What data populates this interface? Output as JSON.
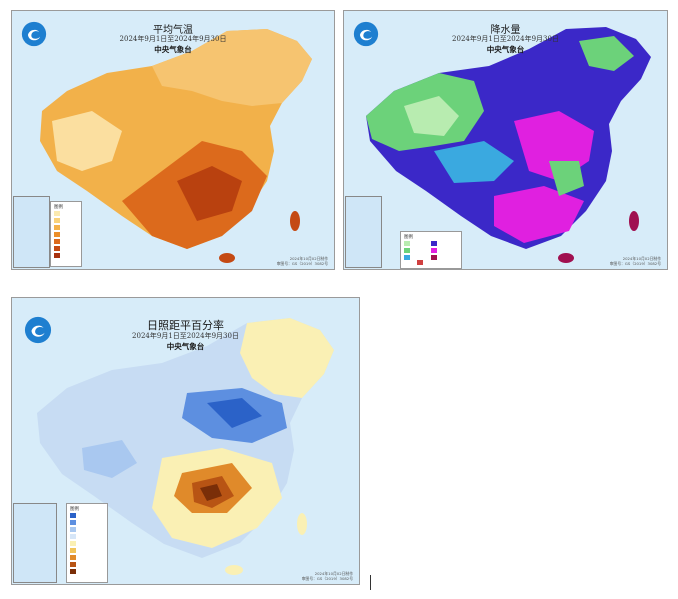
{
  "panels": [
    {
      "title": "平均气温",
      "subtitle": "2024年9月1日至2024年9月30日",
      "org": "中央气象台",
      "legend_title": "图例",
      "footer": [
        "2024年10月02日制作",
        "审图号：GS（2019）3082号"
      ],
      "colors": [
        "#fbeab0",
        "#f9d27a",
        "#f4b24a",
        "#ec8f2a",
        "#dc6a1c",
        "#c44a14",
        "#a8320f"
      ]
    },
    {
      "title": "降水量",
      "subtitle": "2024年9月1日至2024年9月30日",
      "org": "中央气象台",
      "legend_title": "图例",
      "footer": [
        "2024年10月02日制作",
        "审图号：GS（2019）3082号"
      ],
      "colors": [
        "#b8ecb0",
        "#6cd27a",
        "#3aa9e0",
        "#3b28c8",
        "#e020e0",
        "#a01050",
        "#d04040"
      ]
    },
    {
      "title": "日照距平百分率",
      "subtitle": "2024年9月1日至2024年9月30日",
      "org": "中央气象台",
      "legend_title": "图例",
      "footer": [
        "2024年10月02日制作",
        "审图号：GS（2019）3082号"
      ],
      "colors": [
        "#2b62c8",
        "#5d8fe0",
        "#a9c8f0",
        "#d6e6f8",
        "#faf0b4",
        "#f1c45a",
        "#e08a2a",
        "#b85414",
        "#7a2e08"
      ]
    }
  ]
}
